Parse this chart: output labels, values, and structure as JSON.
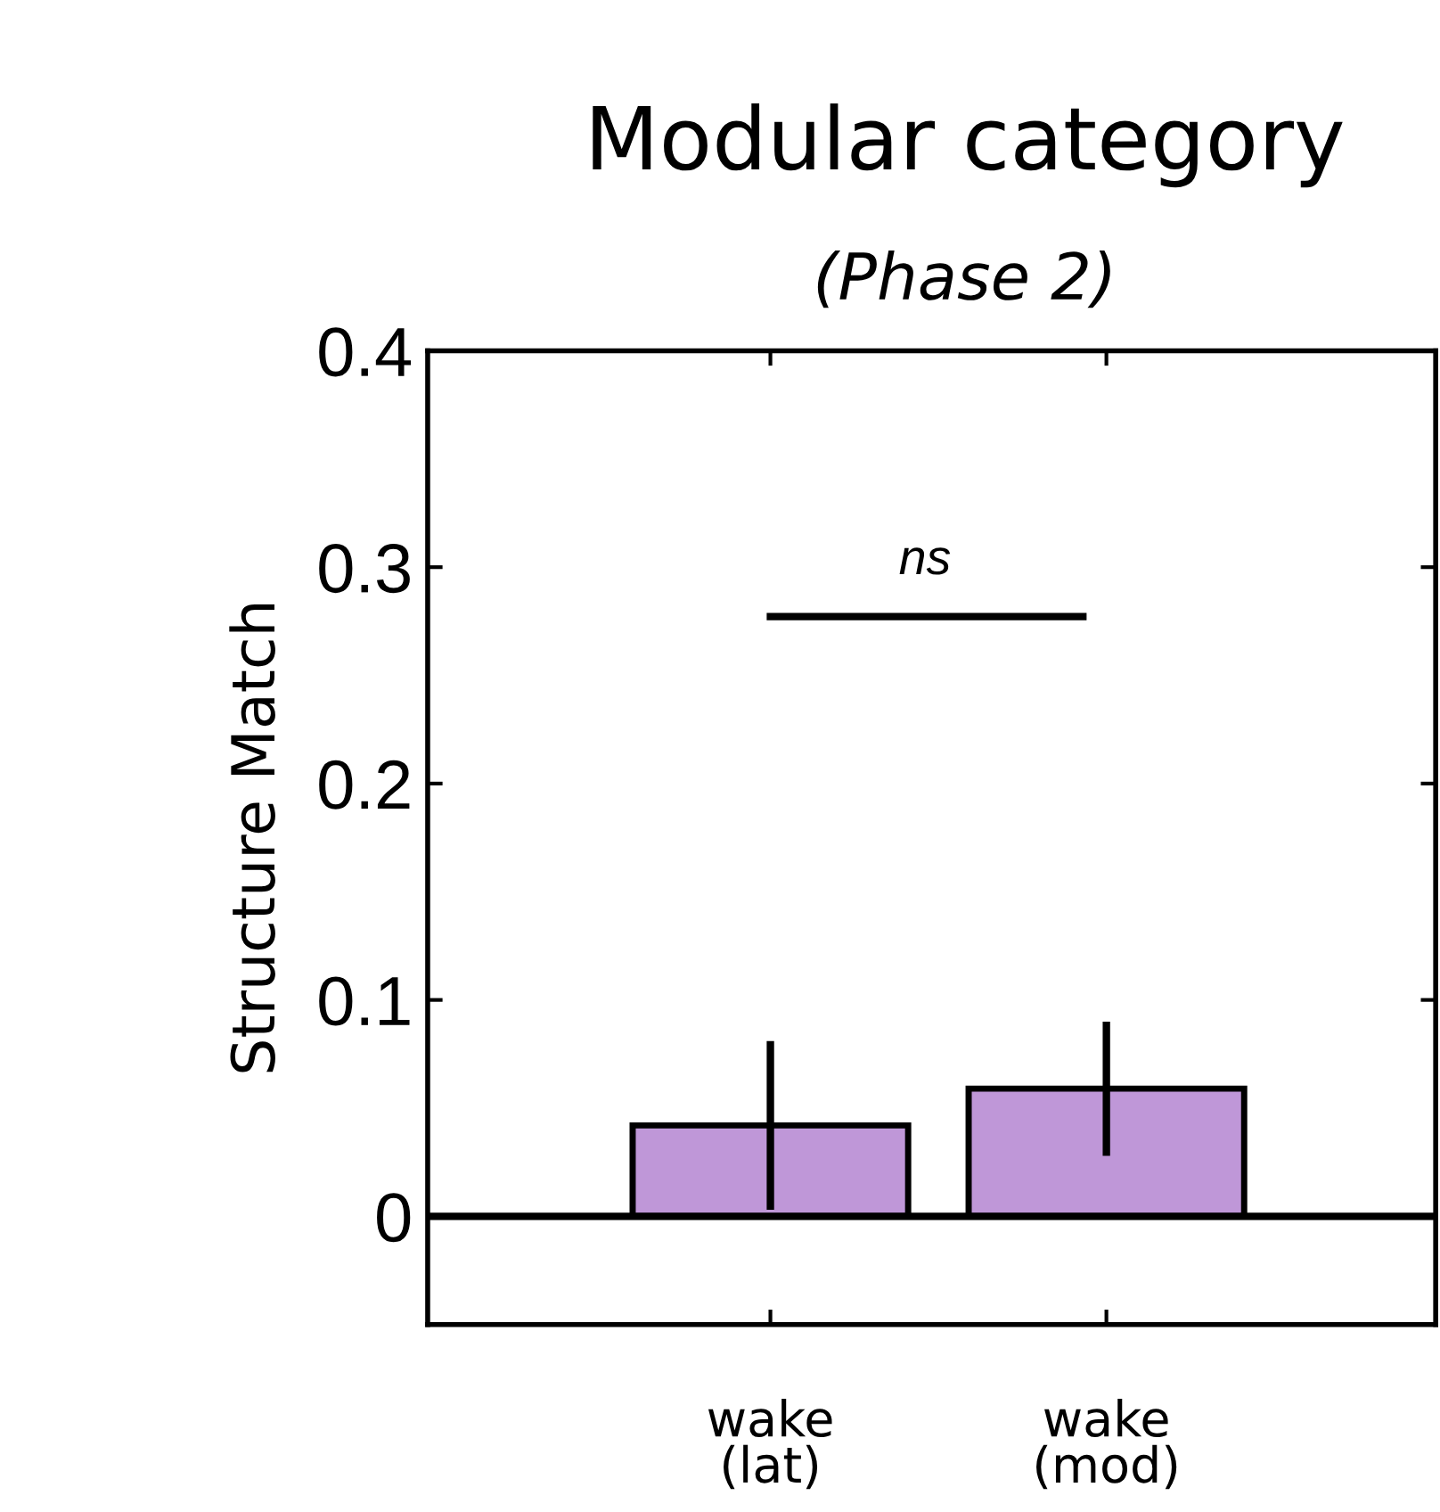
{
  "chart_data": {
    "type": "bar",
    "title": "Modular category",
    "subtitle": "(Phase 2)",
    "ylabel": "Structure Match",
    "categories": [
      "wake\n(lat)",
      "wake\n(mod)"
    ],
    "values": [
      0.042,
      0.059
    ],
    "errors": [
      0.039,
      0.031
    ],
    "color": "#bf97d8",
    "ylim": [
      -0.05,
      0.4
    ],
    "yticks": [
      0,
      0.1,
      0.2,
      0.3,
      0.4
    ],
    "ref_lines": [
      {
        "axis": "y",
        "value": 0,
        "color": "#000000"
      }
    ],
    "annotations": [
      "ns"
    ],
    "grid": false,
    "legend": false
  }
}
